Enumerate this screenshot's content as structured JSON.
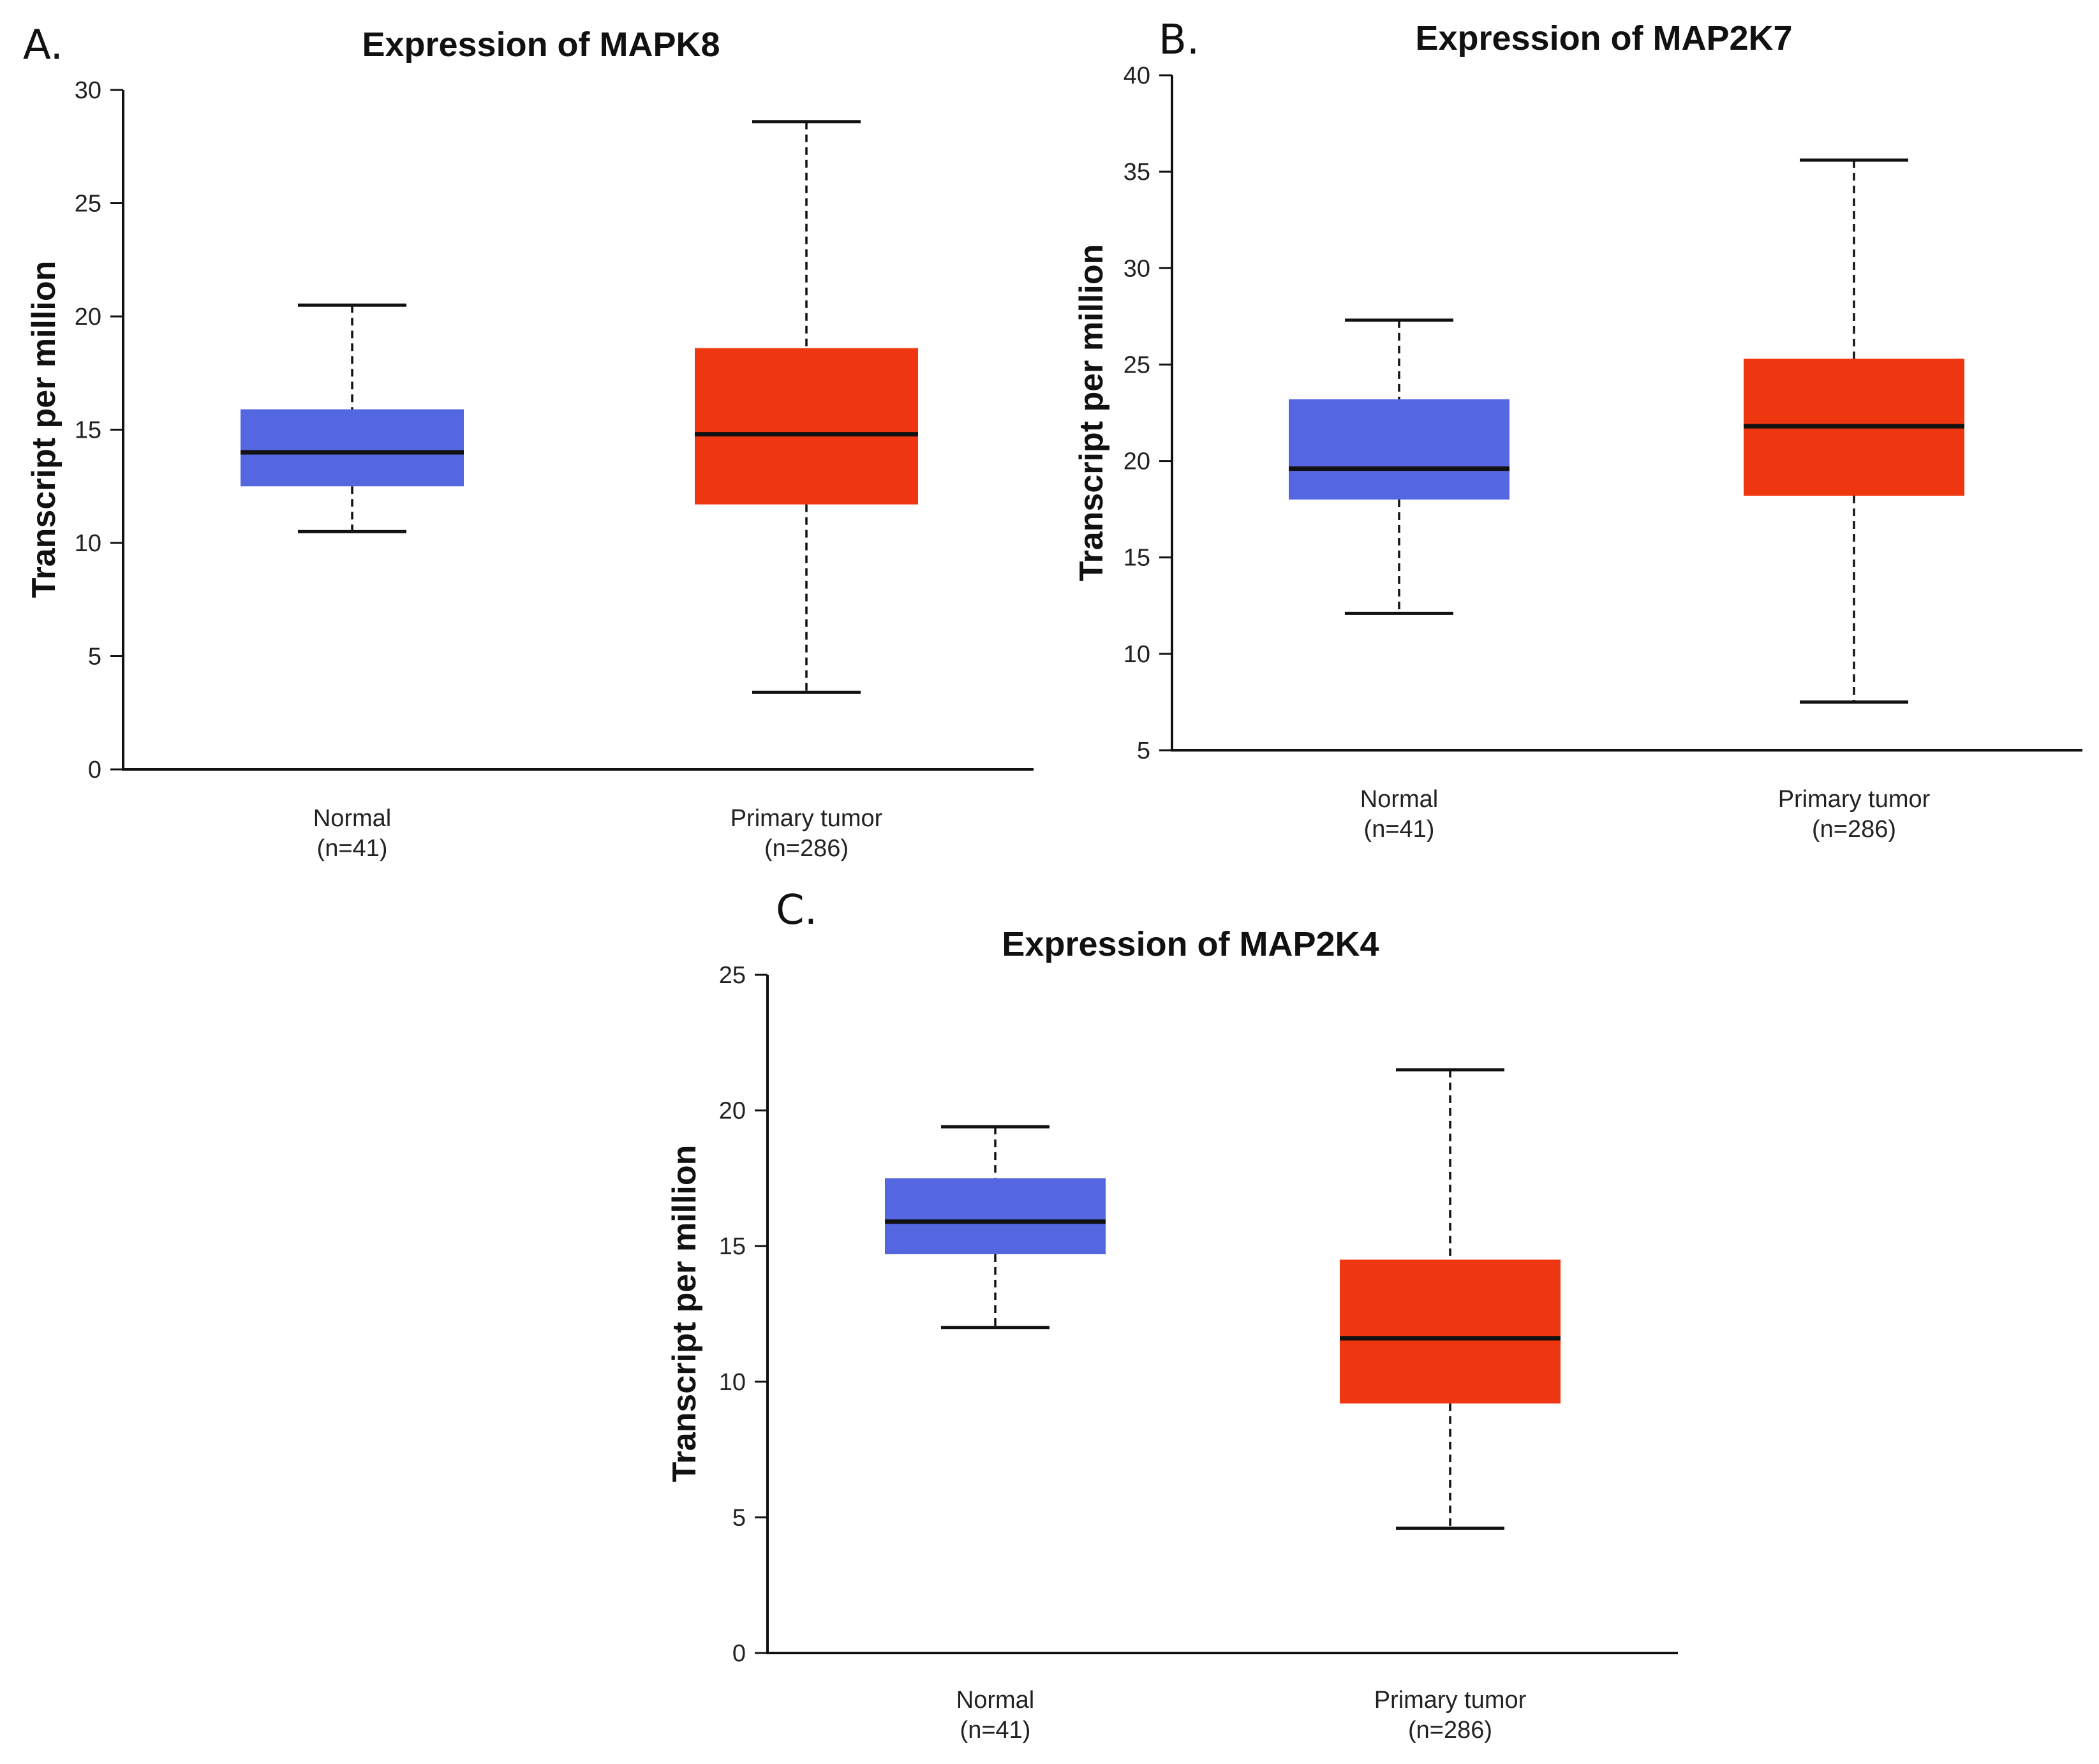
{
  "chart_data": [
    {
      "panel": "A.",
      "type": "box",
      "title": "Expression of MAPK8",
      "ylabel": "Transcript per million",
      "xlabel": "",
      "ylim": [
        0,
        30
      ],
      "yticks": [
        0,
        5,
        10,
        15,
        20,
        25,
        30
      ],
      "categories": [
        {
          "name": "Normal",
          "n": "(n=41)"
        },
        {
          "name": "Primary tumor",
          "n": "(n=286)"
        }
      ],
      "series": [
        {
          "name": "Normal",
          "color": "#5567e0",
          "min": 10.5,
          "q1": 12.5,
          "median": 14.0,
          "q3": 15.9,
          "max": 20.5
        },
        {
          "name": "Primary tumor",
          "color": "#ee3610",
          "min": 3.4,
          "q1": 11.7,
          "median": 14.8,
          "q3": 18.6,
          "max": 28.6
        }
      ]
    },
    {
      "panel": "B.",
      "type": "box",
      "title": "Expression of MAP2K7",
      "ylabel": "Transcript per million",
      "xlabel": "",
      "ylim": [
        5,
        40
      ],
      "yticks": [
        5,
        10,
        15,
        20,
        25,
        30,
        35,
        40
      ],
      "categories": [
        {
          "name": "Normal",
          "n": "(n=41)"
        },
        {
          "name": "Primary tumor",
          "n": "(n=286)"
        }
      ],
      "series": [
        {
          "name": "Normal",
          "color": "#5567e0",
          "min": 12.1,
          "q1": 18.0,
          "median": 19.6,
          "q3": 23.2,
          "max": 27.3
        },
        {
          "name": "Primary tumor",
          "color": "#ee3610",
          "min": 7.5,
          "q1": 18.2,
          "median": 21.8,
          "q3": 25.3,
          "max": 35.6
        }
      ]
    },
    {
      "panel": "C.",
      "type": "box",
      "title": "Expression of MAP2K4",
      "ylabel": "Transcript per million",
      "xlabel": "",
      "ylim": [
        0,
        25
      ],
      "yticks": [
        0,
        5,
        10,
        15,
        20,
        25
      ],
      "categories": [
        {
          "name": "Normal",
          "n": "(n=41)"
        },
        {
          "name": "Primary tumor",
          "n": "(n=286)"
        }
      ],
      "series": [
        {
          "name": "Normal",
          "color": "#5567e0",
          "min": 12.0,
          "q1": 14.7,
          "median": 15.9,
          "q3": 17.5,
          "max": 19.4
        },
        {
          "name": "Primary tumor",
          "color": "#ee3610",
          "min": 4.6,
          "q1": 9.2,
          "median": 11.6,
          "q3": 14.5,
          "max": 21.5
        }
      ]
    }
  ]
}
